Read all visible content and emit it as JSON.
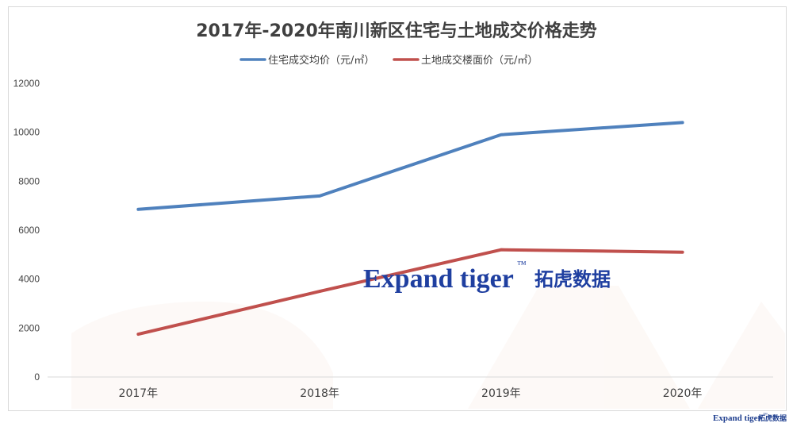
{
  "chart_data": {
    "type": "line",
    "title": "2017年-2020年南川新区住宅与土地成交价格走势",
    "categories": [
      "2017年",
      "2018年",
      "2019年",
      "2020年"
    ],
    "series": [
      {
        "name": "住宅成交均价（元/㎡）",
        "color": "#4f81bd",
        "values": [
          6850,
          7400,
          9900,
          10400
        ]
      },
      {
        "name": "土地成交楼面价（元/㎡）",
        "color": "#c0504d",
        "values": [
          1750,
          3500,
          5200,
          5100
        ]
      }
    ],
    "ylim": [
      0,
      12000
    ],
    "yticks": [
      0,
      2000,
      4000,
      6000,
      8000,
      10000,
      12000
    ],
    "grid": false,
    "legend_position": "top"
  },
  "watermark": {
    "brand_en": "Expand tiger",
    "trademark": "™",
    "brand_cn": "拓虎数据"
  },
  "corner_logo": {
    "brand_en": "Expand tiger",
    "trademark": "™",
    "brand_cn": "拓虎数据"
  }
}
